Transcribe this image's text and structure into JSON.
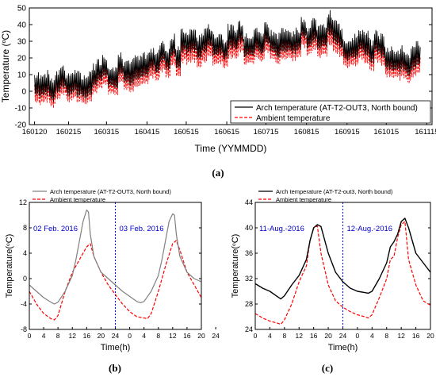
{
  "chart_data": [
    {
      "panel": "(a)",
      "type": "line",
      "xlabel": "Time (YYMMDD)",
      "ylabel": "Temperature (°C)",
      "xlim": [
        160116,
        161119
      ],
      "ylim": [
        -20,
        50
      ],
      "x_ticks": [
        "160120",
        "160215",
        "160315",
        "160415",
        "160515",
        "160615",
        "160715",
        "160815",
        "160915",
        "161015",
        "161115"
      ],
      "y_ticks": [
        -20,
        -10,
        0,
        10,
        20,
        30,
        40,
        50
      ],
      "legend_position": "bottom-right",
      "series": [
        {
          "name": "Arch temperature (AT-T2-OUT3, North bound)",
          "color": "#000000",
          "style": "solid",
          "x": [
            "160120",
            "160215",
            "160315",
            "160415",
            "160515",
            "160615",
            "160715",
            "160815",
            "160901",
            "160915",
            "161015",
            "161110"
          ],
          "values": [
            2,
            3,
            10,
            15,
            25,
            29,
            30,
            33,
            35,
            26,
            22,
            17
          ]
        },
        {
          "name": "Ambient temperature",
          "color": "#ff0000",
          "style": "dashed",
          "x": [
            "160120",
            "160215",
            "160315",
            "160415",
            "160515",
            "160615",
            "160715",
            "160815",
            "160901",
            "160915",
            "161015",
            "161110"
          ],
          "values": [
            -2,
            0,
            6,
            11,
            20,
            24,
            26,
            29,
            30,
            22,
            18,
            13
          ]
        }
      ]
    },
    {
      "panel": "(b)",
      "type": "line",
      "xlabel": "Time(h)",
      "ylabel": "Temperature(°C)",
      "xlim": [
        0,
        48
      ],
      "ylim": [
        -8,
        12
      ],
      "x_ticks": [
        "0",
        "4",
        "8",
        "12",
        "16",
        "20",
        "24",
        "0",
        "4",
        "8",
        "12",
        "16",
        "20",
        "24"
      ],
      "y_ticks": [
        -8,
        -4,
        0,
        4,
        8,
        12
      ],
      "legend_position": "top-left",
      "annotations": [
        "02 Feb. 2016",
        "03 Feb. 2016"
      ],
      "divider_x": 24,
      "series": [
        {
          "name": "Arch temperature (AT-T2-OUT3, North bound)",
          "color": "#808080",
          "style": "solid",
          "x": [
            0,
            2,
            4,
            6,
            7,
            8,
            10,
            12,
            13,
            14,
            15,
            16,
            16.5,
            17,
            18,
            20,
            22,
            24,
            26,
            28,
            30,
            31,
            32,
            34,
            36,
            37,
            38,
            39,
            40,
            40.5,
            41,
            42,
            44,
            46,
            48
          ],
          "values": [
            -1,
            -2,
            -3,
            -3.7,
            -4,
            -3.7,
            -2,
            0.5,
            3,
            6,
            9,
            10.8,
            10.5,
            7,
            3.5,
            1,
            0,
            -1,
            -2,
            -2.8,
            -3.6,
            -3.8,
            -3.6,
            -2,
            0.5,
            3,
            6,
            9,
            10.2,
            10,
            7,
            3.5,
            1,
            0,
            -0.5
          ]
        },
        {
          "name": "Ambient temperature",
          "color": "#ff0000",
          "style": "dashed",
          "x": [
            0,
            2,
            4,
            6,
            7,
            8,
            10,
            12,
            14,
            16,
            17,
            18,
            20,
            22,
            24,
            26,
            28,
            30,
            32,
            33,
            34,
            36,
            38,
            40,
            41,
            42,
            44,
            46,
            48
          ],
          "values": [
            -2,
            -4,
            -5.5,
            -6.3,
            -6.5,
            -5.8,
            -2,
            1,
            3,
            5,
            5.5,
            3.5,
            1,
            -1,
            -2.5,
            -4,
            -5.2,
            -6,
            -6.2,
            -6.3,
            -5.5,
            -2,
            2,
            5.5,
            6,
            4.5,
            1,
            -1,
            -3
          ]
        }
      ]
    },
    {
      "panel": "(c)",
      "type": "line",
      "xlabel": "Time(h)",
      "ylabel": "Temperature(°C)",
      "xlim": [
        0,
        48
      ],
      "ylim": [
        24,
        44
      ],
      "x_ticks": [
        "0",
        "4",
        "8",
        "12",
        "16",
        "20",
        "24",
        "0",
        "4",
        "8",
        "12",
        "16",
        "20",
        "24"
      ],
      "y_ticks": [
        24,
        28,
        32,
        36,
        40,
        44
      ],
      "legend_position": "top-left",
      "annotations": [
        "11-Aug.-2016",
        "12-Aug.-2016"
      ],
      "divider_x": 24,
      "series": [
        {
          "name": "Arch temperature (AT-T2-out3, North bound)",
          "color": "#000000",
          "style": "solid",
          "x": [
            0,
            2,
            4,
            6,
            7,
            8,
            10,
            12,
            14,
            15,
            16,
            17,
            18,
            20,
            22,
            24,
            26,
            28,
            30,
            31,
            32,
            34,
            36,
            37,
            38,
            39,
            40,
            41,
            42,
            44,
            46,
            48
          ],
          "values": [
            31.2,
            30.5,
            30,
            29.2,
            28.8,
            29.3,
            31,
            32.5,
            35,
            38,
            40,
            40.5,
            40.2,
            36,
            33,
            31.5,
            30.5,
            30,
            29.8,
            29.7,
            30,
            32,
            34.5,
            37,
            37.8,
            39,
            41,
            41.5,
            40,
            36,
            34.5,
            33
          ]
        },
        {
          "name": "Ambient temperature",
          "color": "#ff0000",
          "style": "dashed",
          "x": [
            0,
            2,
            4,
            6,
            7,
            8,
            10,
            12,
            14,
            15,
            16,
            17,
            18,
            20,
            22,
            24,
            26,
            28,
            30,
            31,
            32,
            34,
            36,
            37,
            38,
            39,
            40,
            41,
            42,
            44,
            46,
            48
          ],
          "values": [
            26.5,
            25.8,
            25.3,
            25,
            24.8,
            25.5,
            28,
            31.5,
            34,
            38,
            40,
            40.3,
            36,
            31,
            28.5,
            27.5,
            26.8,
            26.3,
            26,
            25.8,
            26.3,
            29,
            32,
            35,
            35.5,
            38.5,
            40.5,
            41,
            35,
            31,
            28.5,
            27.8
          ]
        }
      ]
    }
  ],
  "captions": {
    "a": "(a)",
    "b": "(b)",
    "c": "(c)"
  }
}
